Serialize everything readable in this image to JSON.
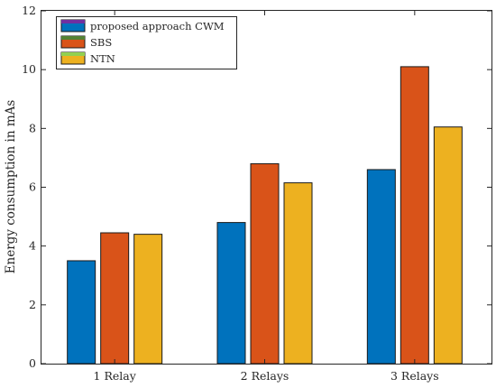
{
  "chart_data": {
    "type": "bar",
    "title": "",
    "xlabel": "",
    "ylabel": "Energy consumption in mAs",
    "categories": [
      "1 Relay",
      "2 Relays",
      "3 Relays"
    ],
    "series": [
      {
        "name": "proposed approach CWM",
        "values": [
          3.5,
          4.8,
          6.6
        ],
        "color": "#0072BD"
      },
      {
        "name": "SBS",
        "values": [
          4.45,
          6.8,
          10.1
        ],
        "color": "#D95319"
      },
      {
        "name": "NTN",
        "values": [
          4.4,
          6.15,
          8.05
        ],
        "color": "#EDB120"
      }
    ],
    "ylim": [
      0,
      12
    ],
    "yticks": [
      0,
      2,
      4,
      6,
      8,
      10,
      12
    ],
    "grid": false,
    "legend_position": "top-left",
    "legend_swatch_accents": [
      "#7030A0",
      "#548235",
      "#92D050"
    ]
  }
}
